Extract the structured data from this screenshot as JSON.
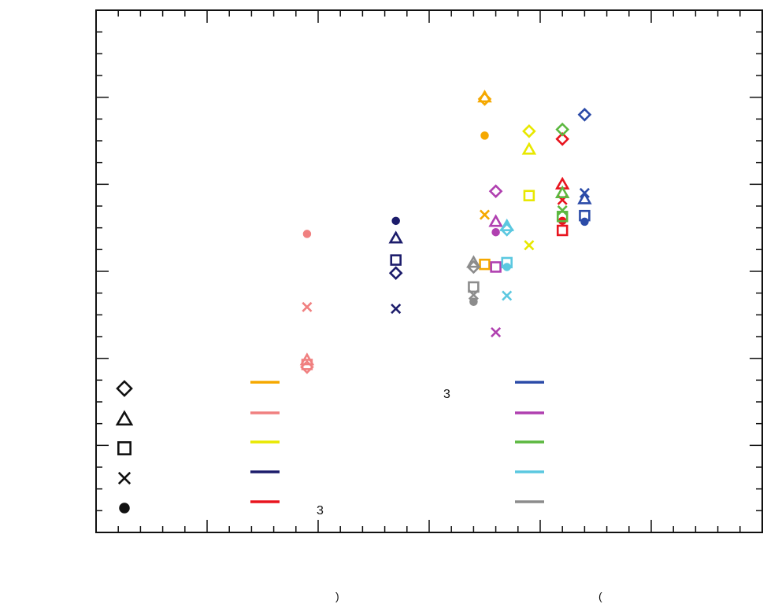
{
  "chart_data": {
    "type": "scatter",
    "title": "",
    "xlabel": "",
    "ylabel": "",
    "xlim": [
      0,
      30
    ],
    "ylim": [
      0,
      6
    ],
    "grid": false,
    "axis_color": "#111111",
    "marker_types": [
      "diamond",
      "triangle",
      "square",
      "x",
      "circle"
    ],
    "series": [
      {
        "color": "#F5A800",
        "points": [
          {
            "x": 17.5,
            "y": 5.0,
            "marker": "triangle"
          },
          {
            "x": 17.5,
            "y": 4.98,
            "marker": "diamond"
          },
          {
            "x": 17.5,
            "y": 4.56,
            "marker": "circle"
          },
          {
            "x": 17.5,
            "y": 3.65,
            "marker": "x"
          },
          {
            "x": 17.5,
            "y": 3.08,
            "marker": "square"
          }
        ]
      },
      {
        "color": "#F08080",
        "points": [
          {
            "x": 9.5,
            "y": 3.43,
            "marker": "circle"
          },
          {
            "x": 9.5,
            "y": 2.59,
            "marker": "x"
          },
          {
            "x": 9.5,
            "y": 1.98,
            "marker": "triangle"
          },
          {
            "x": 9.5,
            "y": 1.93,
            "marker": "square"
          },
          {
            "x": 9.5,
            "y": 1.9,
            "marker": "diamond"
          }
        ]
      },
      {
        "color": "#E8E800",
        "points": [
          {
            "x": 19.5,
            "y": 4.61,
            "marker": "diamond"
          },
          {
            "x": 19.5,
            "y": 4.4,
            "marker": "triangle"
          },
          {
            "x": 19.5,
            "y": 3.87,
            "marker": "square"
          },
          {
            "x": 19.5,
            "y": 3.3,
            "marker": "x"
          }
        ]
      },
      {
        "color": "#1C1C6B",
        "points": [
          {
            "x": 13.5,
            "y": 3.58,
            "marker": "circle"
          },
          {
            "x": 13.5,
            "y": 3.38,
            "marker": "triangle"
          },
          {
            "x": 13.5,
            "y": 3.13,
            "marker": "square"
          },
          {
            "x": 13.5,
            "y": 2.98,
            "marker": "diamond"
          },
          {
            "x": 13.5,
            "y": 2.57,
            "marker": "x"
          }
        ]
      },
      {
        "color": "#E8141E",
        "points": [
          {
            "x": 21.0,
            "y": 4.52,
            "marker": "diamond"
          },
          {
            "x": 21.0,
            "y": 4.0,
            "marker": "triangle"
          },
          {
            "x": 21.0,
            "y": 3.82,
            "marker": "x"
          },
          {
            "x": 21.0,
            "y": 3.58,
            "marker": "circle"
          },
          {
            "x": 21.0,
            "y": 3.47,
            "marker": "square"
          }
        ]
      },
      {
        "color": "#2B4BA8",
        "points": [
          {
            "x": 22.0,
            "y": 4.8,
            "marker": "diamond"
          },
          {
            "x": 22.0,
            "y": 3.9,
            "marker": "x"
          },
          {
            "x": 22.0,
            "y": 3.83,
            "marker": "triangle"
          },
          {
            "x": 22.0,
            "y": 3.64,
            "marker": "square"
          },
          {
            "x": 22.0,
            "y": 3.57,
            "marker": "circle"
          }
        ]
      },
      {
        "color": "#B040B0",
        "points": [
          {
            "x": 18.0,
            "y": 3.92,
            "marker": "diamond"
          },
          {
            "x": 18.0,
            "y": 3.57,
            "marker": "triangle"
          },
          {
            "x": 18.0,
            "y": 3.45,
            "marker": "circle"
          },
          {
            "x": 18.0,
            "y": 3.05,
            "marker": "square"
          },
          {
            "x": 18.0,
            "y": 2.3,
            "marker": "x"
          }
        ]
      },
      {
        "color": "#5CB840",
        "points": [
          {
            "x": 21.0,
            "y": 4.63,
            "marker": "diamond"
          },
          {
            "x": 21.0,
            "y": 3.9,
            "marker": "triangle"
          },
          {
            "x": 21.0,
            "y": 3.63,
            "marker": "square"
          },
          {
            "x": 21.0,
            "y": 3.7,
            "marker": "x"
          }
        ]
      },
      {
        "color": "#5BC8E0",
        "points": [
          {
            "x": 18.5,
            "y": 3.52,
            "marker": "triangle"
          },
          {
            "x": 18.5,
            "y": 3.48,
            "marker": "diamond"
          },
          {
            "x": 18.5,
            "y": 3.1,
            "marker": "square"
          },
          {
            "x": 18.5,
            "y": 3.05,
            "marker": "circle"
          },
          {
            "x": 18.5,
            "y": 2.72,
            "marker": "x"
          }
        ]
      },
      {
        "color": "#8C8C8C",
        "points": [
          {
            "x": 17.0,
            "y": 3.1,
            "marker": "triangle"
          },
          {
            "x": 17.0,
            "y": 3.05,
            "marker": "diamond"
          },
          {
            "x": 17.0,
            "y": 2.82,
            "marker": "square"
          },
          {
            "x": 17.0,
            "y": 2.73,
            "marker": "x"
          },
          {
            "x": 17.0,
            "y": 2.65,
            "marker": "circle"
          }
        ]
      }
    ],
    "legend": {
      "placement": "bottom",
      "marker_column": [
        "diamond",
        "triangle",
        "square",
        "x",
        "circle"
      ],
      "line_columns": [
        [
          "#F5A800",
          "#F08080",
          "#E8E800",
          "#1C1C6B",
          "#E8141E"
        ],
        [
          "#2B4BA8",
          "#B040B0",
          "#5CB840",
          "#5BC8E0",
          "#8C8C8C"
        ]
      ]
    },
    "visible_fragments": [
      "3",
      "3",
      "(",
      ")"
    ]
  }
}
